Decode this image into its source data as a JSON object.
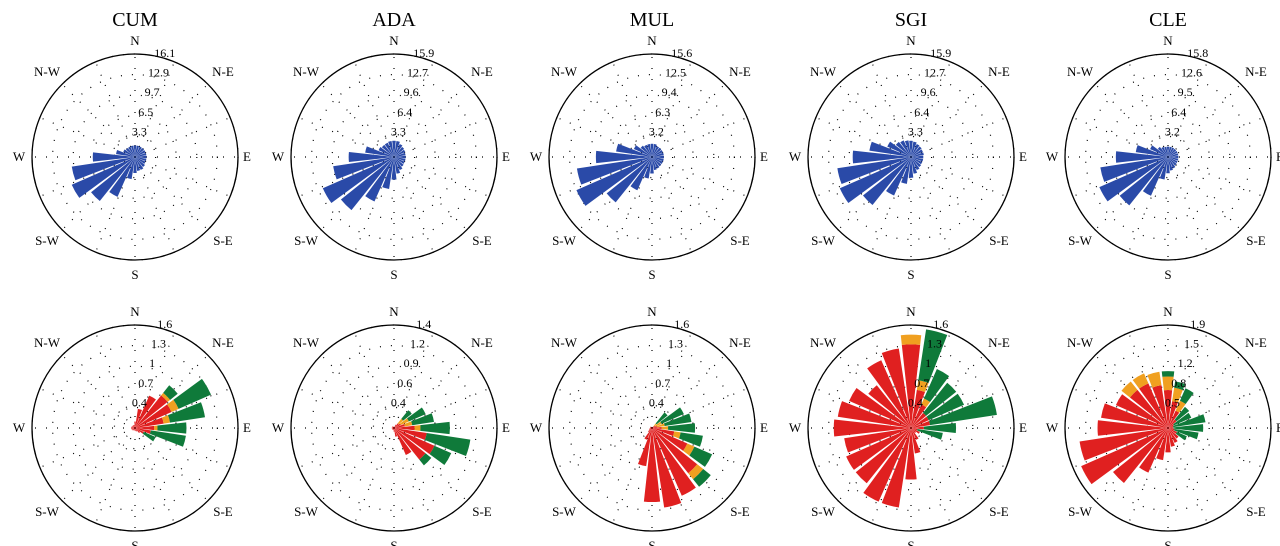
{
  "colors": {
    "blue": "#2a4aa8",
    "red": "#e02020",
    "orange": "#f0a020",
    "green": "#0f7a3a"
  },
  "direction_labels": [
    "N",
    "N-E",
    "E",
    "S-E",
    "S",
    "S-W",
    "W",
    "N-W"
  ],
  "chart_data": [
    {
      "type": "polar-bar",
      "title": "CUM",
      "rmax": 16.1,
      "ticks": [
        "16.1",
        "12.9",
        "9.7",
        "6.5",
        "3.3"
      ],
      "series": [
        {
          "color": "blue",
          "values": [
            1.8,
            1.8,
            1.8,
            1.8,
            1.8,
            1.8,
            1.8,
            1.8,
            1.8,
            2.0,
            2.2,
            2.2,
            2.5,
            3.5,
            6.8,
            8.8,
            10.8,
            10.0,
            6.6,
            3.0,
            2.0,
            1.8,
            1.8,
            1.8
          ]
        }
      ]
    },
    {
      "type": "polar-bar",
      "title": "ADA",
      "rmax": 15.9,
      "ticks": [
        "15.9",
        "12.7",
        "9.6",
        "6.4",
        "3.3"
      ],
      "series": [
        {
          "color": "blue",
          "values": [
            2.5,
            2.5,
            2.2,
            2.0,
            1.9,
            1.8,
            1.8,
            1.8,
            1.8,
            1.9,
            2.2,
            2.6,
            3.5,
            5.0,
            7.5,
            10.5,
            12.0,
            9.5,
            7.0,
            4.5,
            2.6,
            2.4,
            2.4,
            2.5
          ]
        }
      ]
    },
    {
      "type": "polar-bar",
      "title": "MUL",
      "rmax": 15.6,
      "ticks": [
        "15.6",
        "12.5",
        "9.4",
        "6.3",
        "3.2"
      ],
      "series": [
        {
          "color": "blue",
          "values": [
            2.0,
            2.0,
            1.8,
            1.8,
            1.8,
            1.8,
            1.8,
            1.8,
            1.8,
            1.8,
            1.9,
            2.0,
            2.5,
            3.3,
            5.5,
            8.8,
            12.5,
            11.5,
            8.5,
            5.5,
            3.0,
            2.2,
            2.0,
            2.0
          ]
        }
      ]
    },
    {
      "type": "polar-bar",
      "title": "SGI",
      "rmax": 15.9,
      "ticks": [
        "15.9",
        "12.7",
        "9.6",
        "6.4",
        "3.3"
      ],
      "series": [
        {
          "color": "blue",
          "values": [
            2.5,
            2.4,
            2.2,
            2.1,
            2.0,
            2.0,
            1.9,
            1.9,
            1.9,
            2.0,
            2.2,
            2.6,
            3.2,
            4.2,
            6.5,
            9.5,
            12.0,
            11.5,
            9.0,
            6.5,
            4.0,
            3.0,
            2.8,
            2.6
          ]
        }
      ]
    },
    {
      "type": "polar-bar",
      "title": "CLE",
      "rmax": 15.8,
      "ticks": [
        "15.8",
        "12.6",
        "9.5",
        "6.4",
        "3.2"
      ],
      "series": [
        {
          "color": "blue",
          "values": [
            1.6,
            1.6,
            1.6,
            1.6,
            1.6,
            1.6,
            1.6,
            1.6,
            1.6,
            1.7,
            1.9,
            2.1,
            2.5,
            3.5,
            6.5,
            9.5,
            11.5,
            10.5,
            8.0,
            5.0,
            3.0,
            2.0,
            1.7,
            1.6
          ]
        }
      ]
    },
    {
      "type": "polar-bar",
      "title": "",
      "rmax": 1.6,
      "ticks": [
        "1.6",
        "1.3",
        "1",
        "0.7",
        "0.4"
      ],
      "series": [
        {
          "color": "red",
          "values": [
            0.1,
            0.3,
            0.55,
            0.65,
            0.62,
            0.45,
            0.3,
            0.25,
            0.15,
            0.1,
            0.06,
            0.05,
            0.04,
            0.04,
            0.04,
            0.05,
            0.05,
            0.06,
            0.06,
            0.06,
            0.05,
            0.05,
            0.05,
            0.05
          ]
        },
        {
          "color": "orange",
          "values": [
            0,
            0,
            0,
            0.05,
            0.12,
            0.1,
            0.05,
            0,
            0,
            0,
            0,
            0,
            0,
            0,
            0,
            0,
            0,
            0,
            0,
            0,
            0,
            0,
            0,
            0
          ]
        },
        {
          "color": "green",
          "values": [
            0,
            0,
            0,
            0.15,
            0.55,
            0.55,
            0.45,
            0.55,
            0.2,
            0,
            0,
            0,
            0,
            0,
            0,
            0,
            0,
            0,
            0,
            0,
            0,
            0,
            0,
            0
          ]
        }
      ]
    },
    {
      "type": "polar-bar",
      "title": "",
      "rmax": 1.4,
      "ticks": [
        "1.4",
        "1.2",
        "0.9",
        "0.6",
        "0.4"
      ],
      "series": [
        {
          "color": "red",
          "values": [
            0,
            0,
            0.05,
            0.08,
            0.1,
            0.15,
            0.28,
            0.45,
            0.6,
            0.55,
            0.4,
            0.12,
            0.05,
            0.03,
            0.03,
            0.03,
            0.03,
            0.03,
            0.03,
            0.03,
            0.03,
            0.03,
            0.02,
            0.02
          ]
        },
        {
          "color": "orange",
          "values": [
            0,
            0,
            0,
            0.08,
            0.12,
            0.1,
            0.08,
            0,
            0,
            0,
            0,
            0,
            0,
            0,
            0,
            0,
            0,
            0,
            0,
            0,
            0,
            0,
            0,
            0
          ]
        },
        {
          "color": "green",
          "values": [
            0,
            0,
            0,
            0.15,
            0.25,
            0.3,
            0.4,
            0.6,
            0.25,
            0.1,
            0,
            0,
            0,
            0,
            0,
            0,
            0,
            0,
            0,
            0,
            0,
            0,
            0,
            0
          ]
        }
      ]
    },
    {
      "type": "polar-bar",
      "title": "",
      "rmax": 1.6,
      "ticks": [
        "1.6",
        "1.3",
        "1",
        "0.7",
        "0.4"
      ],
      "series": [
        {
          "color": "red",
          "values": [
            0,
            0,
            0,
            0.04,
            0.06,
            0.08,
            0.15,
            0.35,
            0.6,
            0.9,
            1.15,
            1.25,
            1.15,
            0.6,
            0.2,
            0.08,
            0.05,
            0.04,
            0.03,
            0.03,
            0.03,
            0.03,
            0,
            0
          ]
        },
        {
          "color": "orange",
          "values": [
            0,
            0,
            0,
            0.05,
            0.1,
            0.12,
            0.1,
            0.1,
            0.12,
            0.12,
            0,
            0,
            0,
            0,
            0,
            0,
            0,
            0,
            0,
            0,
            0,
            0,
            0,
            0
          ]
        },
        {
          "color": "green",
          "values": [
            0,
            0,
            0,
            0.22,
            0.38,
            0.42,
            0.42,
            0.35,
            0.3,
            0.15,
            0,
            0,
            0,
            0,
            0,
            0,
            0,
            0,
            0,
            0,
            0,
            0,
            0,
            0
          ]
        }
      ]
    },
    {
      "type": "polar-bar",
      "title": "",
      "rmax": 1.6,
      "ticks": [
        "1.6",
        "1.3",
        "1",
        "0.7",
        "0.4"
      ],
      "series": [
        {
          "color": "red",
          "values": [
            1.3,
            0.6,
            0.4,
            0.3,
            0.3,
            0.3,
            0.2,
            0.1,
            0.15,
            0.1,
            0.2,
            0.4,
            0.8,
            1.25,
            1.25,
            1.1,
            1.1,
            1.05,
            1.2,
            1.15,
            1.05,
            0.85,
            1.15,
            1.25
          ]
        },
        {
          "color": "orange",
          "values": [
            0.15,
            0.15,
            0.1,
            0,
            0,
            0,
            0,
            0,
            0,
            0,
            0,
            0,
            0,
            0,
            0,
            0,
            0,
            0,
            0,
            0,
            0,
            0,
            0,
            0
          ]
        },
        {
          "color": "green",
          "values": [
            0,
            0.8,
            0.5,
            0.6,
            0.6,
            1.05,
            0.5,
            0.4,
            0,
            0,
            0,
            0,
            0,
            0,
            0,
            0,
            0,
            0,
            0,
            0,
            0,
            0,
            0,
            0
          ]
        }
      ]
    },
    {
      "type": "polar-bar",
      "title": "",
      "rmax": 1.9,
      "ticks": [
        "1.9",
        "1.5",
        "1.2",
        "0.8",
        "0.5"
      ],
      "series": [
        {
          "color": "red",
          "values": [
            0.7,
            0.5,
            0.35,
            0.2,
            0.12,
            0.1,
            0.1,
            0.12,
            0.18,
            0.25,
            0.3,
            0.35,
            0.45,
            0.6,
            0.9,
            1.3,
            1.75,
            1.65,
            1.3,
            1.25,
            1.05,
            0.9,
            0.9,
            0.8
          ]
        },
        {
          "color": "orange",
          "values": [
            0.25,
            0.25,
            0.2,
            0,
            0,
            0,
            0,
            0,
            0,
            0,
            0,
            0,
            0,
            0,
            0,
            0,
            0,
            0,
            0,
            0,
            0,
            0.2,
            0.2,
            0.25
          ]
        },
        {
          "color": "green",
          "values": [
            0.1,
            0.12,
            0.25,
            0.3,
            0.35,
            0.6,
            0.55,
            0.45,
            0.2,
            0,
            0,
            0,
            0,
            0,
            0,
            0,
            0,
            0,
            0,
            0,
            0,
            0,
            0,
            0
          ]
        }
      ]
    }
  ]
}
